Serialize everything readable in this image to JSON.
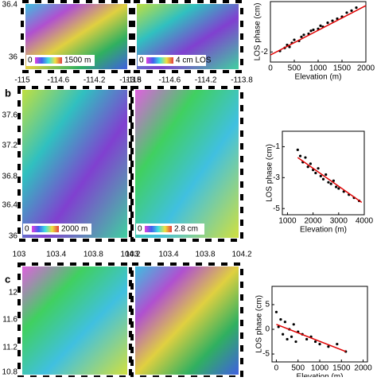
{
  "rows": [
    {
      "label": null,
      "map_yticks": [
        "36.4",
        "36"
      ],
      "map_xticks": [
        "-115",
        "-114.6",
        "-114.2",
        "-113.8"
      ],
      "elevation_scale": {
        "min": "0",
        "max": "1500 m"
      },
      "deformation_scale": {
        "min": "0",
        "max": "4 cm LOS"
      },
      "chart": {
        "type": "scatter",
        "xlabel": "Elevation (m)",
        "ylabel": "LOS phase (cm)",
        "xlim": [
          0,
          2000
        ],
        "ylim": [
          -3,
          3
        ],
        "xticks": [
          0,
          500,
          1000,
          1500,
          2000
        ],
        "yticks": [
          -2
        ],
        "color": "#000000",
        "x": [
          200,
          300,
          350,
          400,
          450,
          500,
          600,
          650,
          700,
          800,
          850,
          900,
          1000,
          1050,
          1100,
          1200,
          1300,
          1400,
          1500,
          1600,
          1700,
          1800
        ],
        "values": [
          -1.9,
          -1.6,
          -1.3,
          -1.5,
          -1.1,
          -0.8,
          -0.9,
          -0.5,
          -0.3,
          -0.2,
          0.1,
          0.2,
          0.3,
          0.6,
          0.5,
          0.9,
          1.1,
          1.3,
          1.5,
          1.9,
          2.1,
          2.4
        ],
        "fit": {
          "color": "#e00000",
          "x": [
            0,
            2000
          ],
          "values": [
            -2.3,
            2.6
          ]
        }
      }
    },
    {
      "label": "b",
      "map_yticks": [
        "37.6",
        "37.2",
        "36.8",
        "36.4",
        "36"
      ],
      "map_xticks": [
        "103",
        "103.4",
        "103.8",
        "104.2"
      ],
      "elevation_scale": {
        "min": "0",
        "max": "2000 m"
      },
      "deformation_scale": {
        "min": "0",
        "max": "2.8 cm"
      },
      "chart": {
        "type": "scatter",
        "xlabel": "Elevation (m)",
        "ylabel": "LOS phase (cm)",
        "xlim": [
          800,
          4000
        ],
        "ylim": [
          -5.4,
          0
        ],
        "xticks": [
          1000,
          2000,
          3000,
          4000
        ],
        "yticks": [
          -1,
          -3,
          -5
        ],
        "color": "#000000",
        "x": [
          1400,
          1500,
          1600,
          1700,
          1800,
          1900,
          2000,
          2100,
          2200,
          2300,
          2400,
          2500,
          2600,
          2700,
          2800,
          2900,
          3000,
          3200,
          3400,
          3600,
          3800
        ],
        "values": [
          -1.2,
          -1.6,
          -2.0,
          -1.7,
          -2.3,
          -2.1,
          -2.5,
          -2.7,
          -2.4,
          -2.9,
          -3.1,
          -2.8,
          -3.3,
          -3.4,
          -3.2,
          -3.6,
          -3.7,
          -3.9,
          -4.1,
          -4.3,
          -4.5
        ],
        "fit": {
          "color": "#e00000",
          "x": [
            1400,
            3900
          ],
          "values": [
            -1.7,
            -4.6
          ]
        }
      }
    },
    {
      "label": "c",
      "map_yticks": [
        "12",
        "11.6",
        "11.2",
        "10.8"
      ],
      "map_xticks": [],
      "elevation_scale": null,
      "deformation_scale": null,
      "chart": {
        "type": "scatter",
        "xlabel": "Elevation (m)",
        "ylabel": "LOS phase (cm)",
        "xlim": [
          -100,
          2100
        ],
        "ylim": [
          -6.6,
          8.7
        ],
        "xticks": [
          0,
          500,
          1000,
          1500,
          2000
        ],
        "yticks": [
          5,
          0,
          -5
        ],
        "color": "#000000",
        "x": [
          0,
          50,
          100,
          150,
          200,
          250,
          300,
          350,
          400,
          450,
          500,
          600,
          700,
          800,
          900,
          1000,
          1200,
          1400,
          1600
        ],
        "values": [
          3.5,
          0.5,
          2.0,
          -1.0,
          1.5,
          -2.0,
          0.0,
          -1.5,
          1.0,
          -2.5,
          -0.5,
          -1.0,
          -2.0,
          -1.5,
          -2.5,
          -3.0,
          -3.5,
          -3.0,
          -4.5
        ],
        "fit": {
          "color": "#e00000",
          "x": [
            0,
            1600
          ],
          "values": [
            1,
            -4.5
          ]
        }
      }
    }
  ]
}
